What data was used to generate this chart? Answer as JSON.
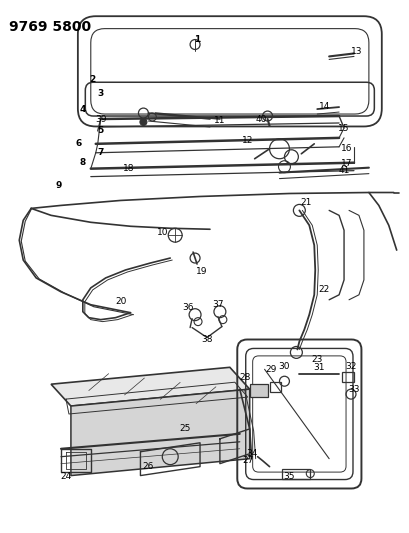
{
  "title": "9769 5800",
  "bg_color": "#ffffff",
  "line_color": "#333333",
  "label_color": "#000000",
  "label_fontsize": 6.5,
  "title_fontsize": 10,
  "figsize": [
    4.1,
    5.33
  ],
  "dpi": 100
}
